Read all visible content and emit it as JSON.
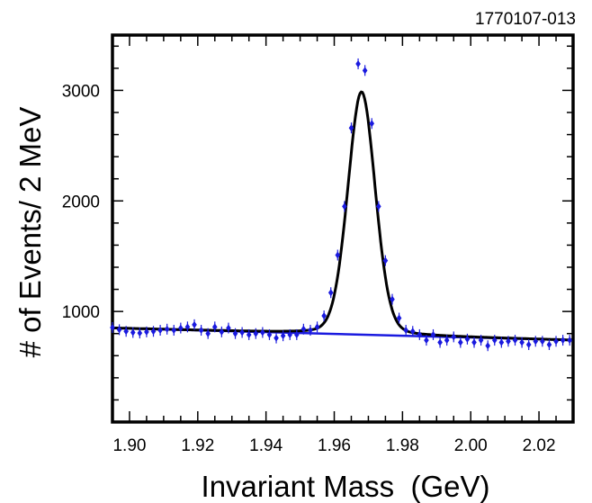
{
  "figure_id": "1770107-013",
  "colors": {
    "axes": "#000000",
    "signal_fit": "#000000",
    "background_fit": "#1a1adf",
    "data_points": "#1a1adf"
  },
  "chart_data": {
    "type": "scatter",
    "xlabel": "Invariant Mass  (GeV)",
    "ylabel": "# of Events/ 2 MeV",
    "xlim": [
      1.895,
      2.03
    ],
    "ylim": [
      0,
      3500
    ],
    "x_ticks": [
      {
        "value": 1.9,
        "label": "1.90"
      },
      {
        "value": 1.92,
        "label": "1.92"
      },
      {
        "value": 1.94,
        "label": "1.94"
      },
      {
        "value": 1.96,
        "label": "1.96"
      },
      {
        "value": 1.98,
        "label": "1.98"
      },
      {
        "value": 2.0,
        "label": "2.00"
      },
      {
        "value": 2.02,
        "label": "2.02"
      }
    ],
    "y_ticks": [
      {
        "value": 1000,
        "label": "1000"
      },
      {
        "value": 2000,
        "label": "2000"
      },
      {
        "value": 3000,
        "label": "3000"
      }
    ],
    "grid": false,
    "series": [
      {
        "kind": "points",
        "x": [
          1.895,
          1.897,
          1.899,
          1.901,
          1.903,
          1.905,
          1.907,
          1.909,
          1.911,
          1.913,
          1.915,
          1.917,
          1.919,
          1.921,
          1.923,
          1.925,
          1.927,
          1.929,
          1.931,
          1.933,
          1.935,
          1.937,
          1.939,
          1.941,
          1.943,
          1.945,
          1.947,
          1.949,
          1.951,
          1.953,
          1.955,
          1.957,
          1.959,
          1.961,
          1.963,
          1.965,
          1.967,
          1.969,
          1.971,
          1.973,
          1.975,
          1.977,
          1.979,
          1.981,
          1.983,
          1.985,
          1.987,
          1.989,
          1.991,
          1.993,
          1.995,
          1.997,
          1.999,
          2.001,
          2.003,
          2.005,
          2.007,
          2.009,
          2.011,
          2.013,
          2.015,
          2.017,
          2.019,
          2.021,
          2.023,
          2.025,
          2.027,
          2.029
        ],
        "y": [
          855,
          835,
          820,
          810,
          805,
          815,
          820,
          830,
          840,
          830,
          850,
          860,
          880,
          830,
          800,
          860,
          815,
          850,
          800,
          810,
          790,
          800,
          810,
          790,
          760,
          780,
          790,
          790,
          840,
          830,
          860,
          960,
          1170,
          1510,
          1950,
          2660,
          3240,
          3180,
          2700,
          1950,
          1460,
          1110,
          940,
          830,
          820,
          790,
          740,
          790,
          720,
          740,
          770,
          720,
          750,
          720,
          740,
          690,
          740,
          720,
          730,
          740,
          720,
          700,
          730,
          730,
          700,
          730,
          740,
          740
        ]
      },
      {
        "kind": "line",
        "name_hidden": "background",
        "x": [
          1.895,
          2.03
        ],
        "y": [
          850,
          740
        ]
      },
      {
        "kind": "line",
        "name_hidden": "total",
        "model": {
          "peak_x": 1.968,
          "width": 0.0043,
          "amplitude": 2440,
          "bg_start": 850,
          "bg_end": 740
        }
      }
    ]
  }
}
